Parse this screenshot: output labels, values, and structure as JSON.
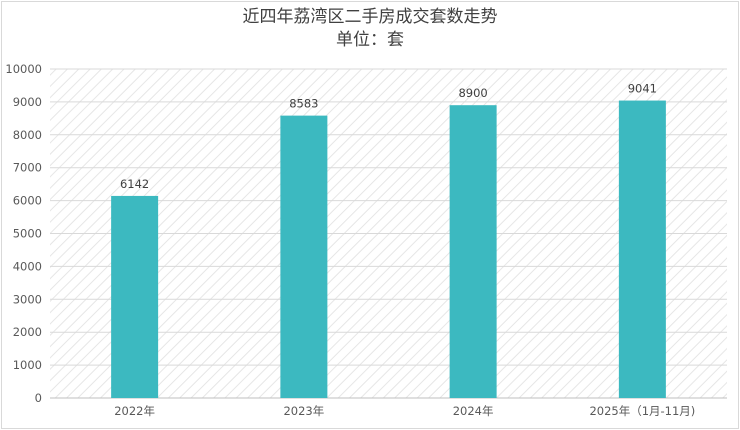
{
  "chart_data": {
    "type": "bar",
    "title": "近四年荔湾区二手房成交套数走势",
    "subtitle": "单位：套",
    "categories": [
      "2022年",
      "2023年",
      "2024年",
      "2025年（1月-11月)"
    ],
    "values": [
      6142,
      8583,
      8900,
      9041
    ],
    "data_labels": [
      "6142",
      "8583",
      "8900",
      "9041"
    ],
    "ylim": [
      0,
      10000
    ],
    "yticks": [
      0,
      1000,
      2000,
      3000,
      4000,
      5000,
      6000,
      7000,
      8000,
      9000,
      10000
    ],
    "ytick_labels": [
      "0",
      "1000",
      "2000",
      "3000",
      "4000",
      "5000",
      "6000",
      "7000",
      "8000",
      "9000",
      "10000"
    ],
    "grid": true,
    "bar_color": "#3cb9c0",
    "background_pattern": "diagonal-hatch"
  }
}
